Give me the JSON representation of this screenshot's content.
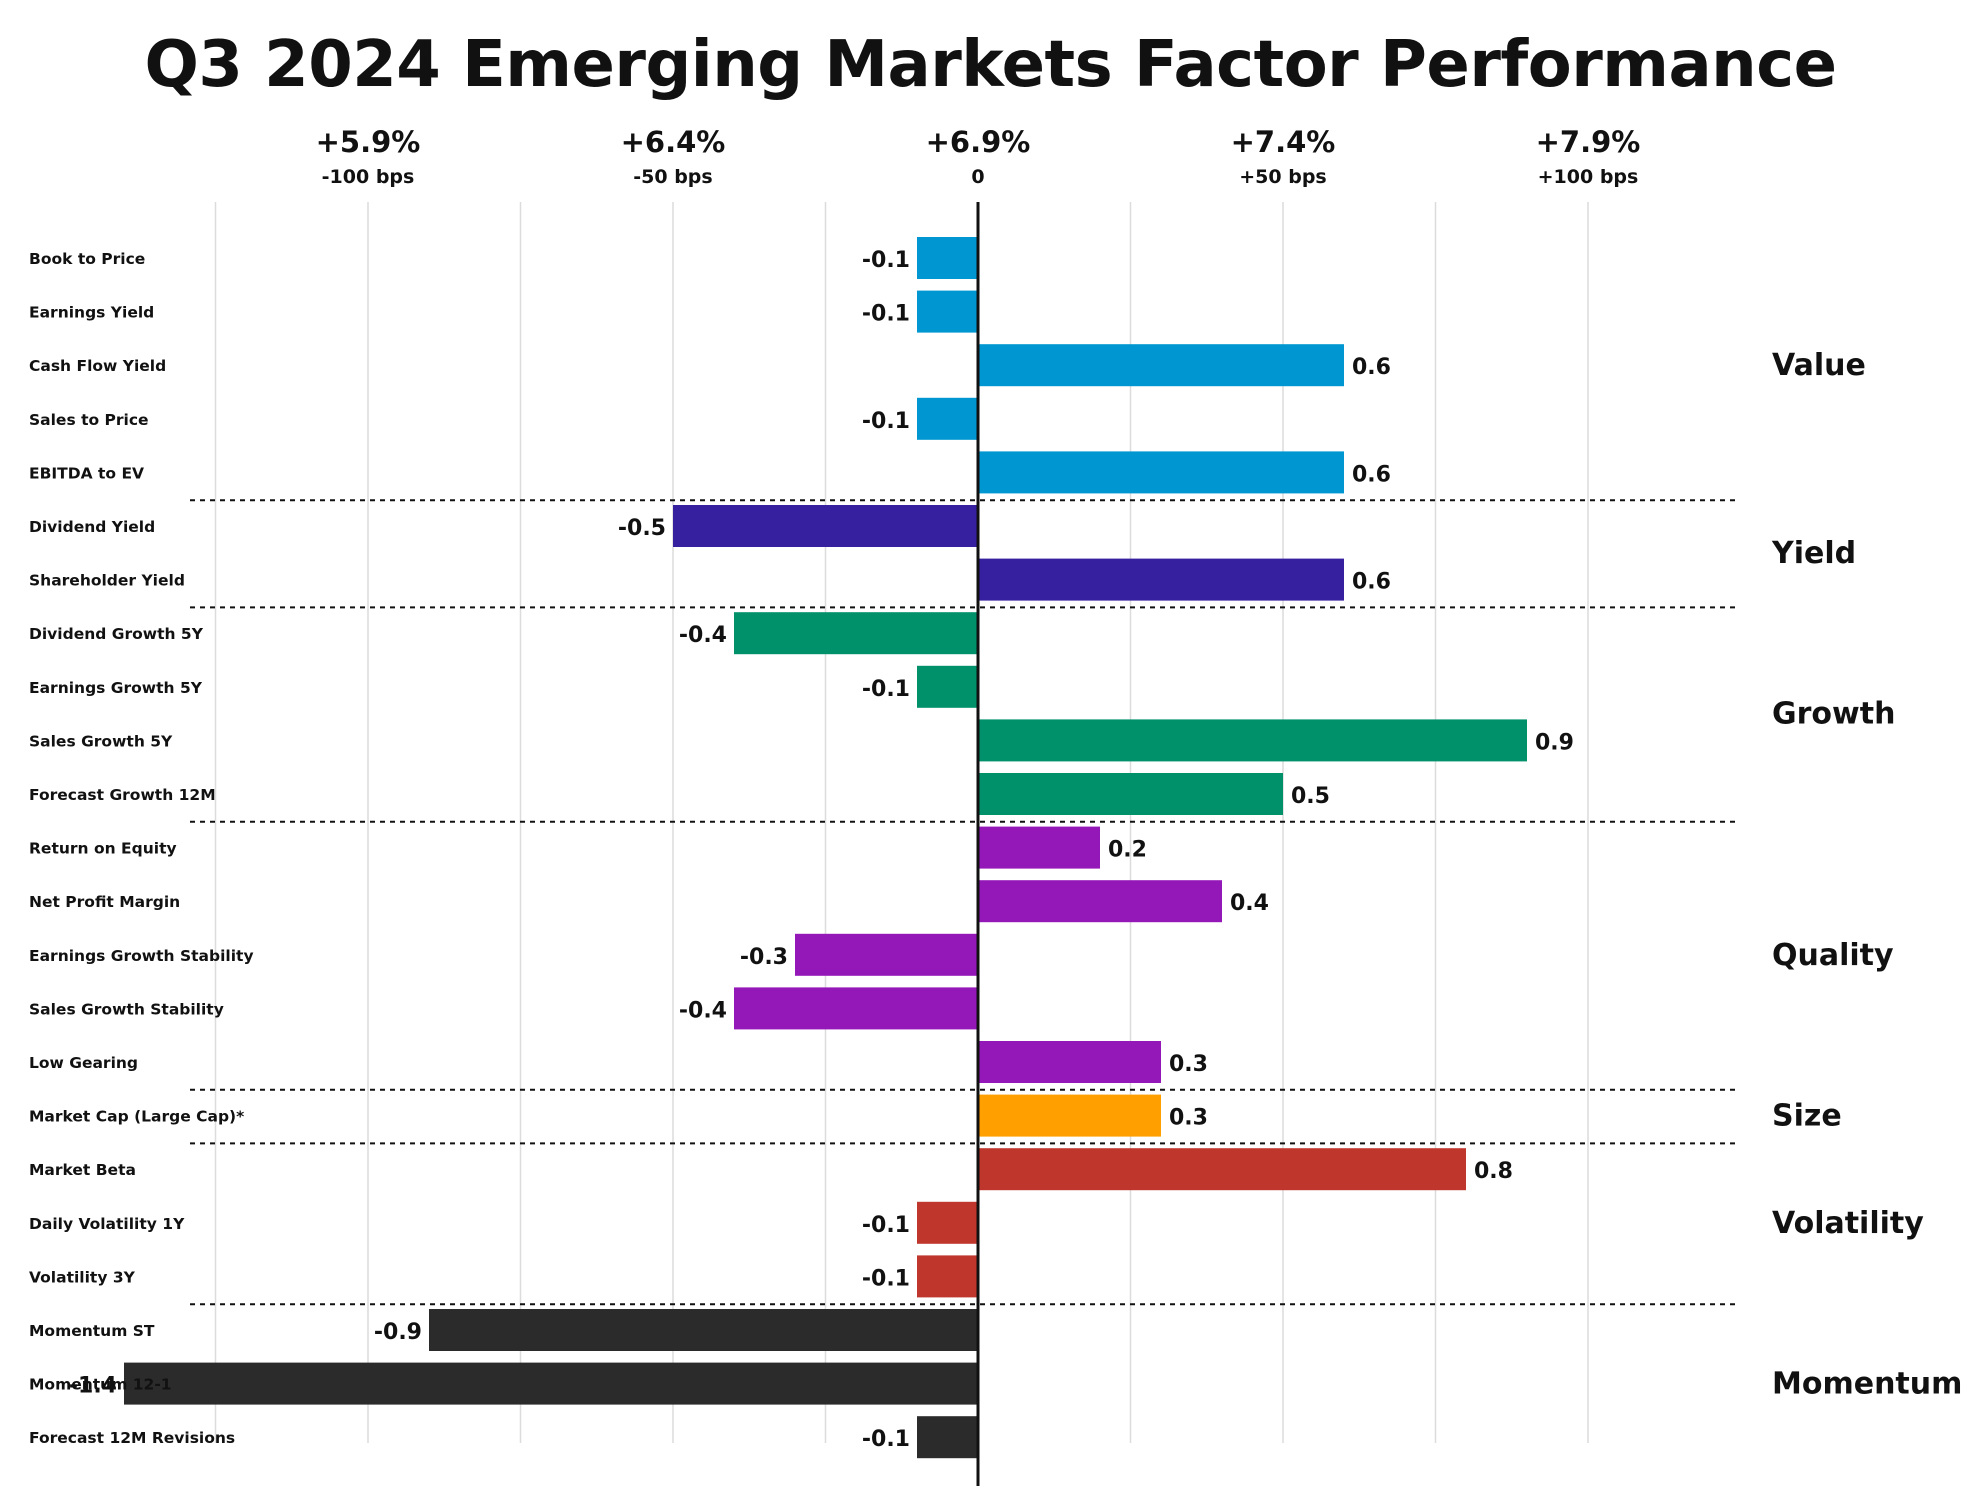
{
  "chart_data": {
    "type": "bar",
    "orientation": "horizontal",
    "title": "Q3 2024 Emerging Markets Factor Performance",
    "x_range_bps": [
      -125,
      100
    ],
    "x_ticks": [
      {
        "value": -100,
        "pct_label": "+5.9%",
        "bps_label": "-100 bps"
      },
      {
        "value": -50,
        "pct_label": "+6.4%",
        "bps_label": "-50 bps"
      },
      {
        "value": 0,
        "pct_label": "+6.9%",
        "bps_label": "0"
      },
      {
        "value": 50,
        "pct_label": "+7.4%",
        "bps_label": "+50 bps"
      },
      {
        "value": 100,
        "pct_label": "+7.9%",
        "bps_label": "+100 bps"
      }
    ],
    "grid": true,
    "groups": [
      {
        "name": "Value",
        "color": "#0096D1",
        "factors": [
          {
            "label": "Book to Price",
            "value": -0.1,
            "display": "-0.1"
          },
          {
            "label": "Earnings Yield",
            "value": -0.1,
            "display": "-0.1"
          },
          {
            "label": "Cash Flow Yield",
            "value": 0.6,
            "display": "0.6"
          },
          {
            "label": "Sales to Price",
            "value": -0.1,
            "display": "-0.1"
          },
          {
            "label": "EBITDA to EV",
            "value": 0.6,
            "display": "0.6"
          }
        ]
      },
      {
        "name": "Yield",
        "color": "#3720A0",
        "factors": [
          {
            "label": "Dividend Yield",
            "value": -0.5,
            "display": "-0.5"
          },
          {
            "label": "Shareholder Yield",
            "value": 0.6,
            "display": "0.6"
          }
        ]
      },
      {
        "name": "Growth",
        "color": "#00916A",
        "factors": [
          {
            "label": "Dividend Growth 5Y",
            "value": -0.4,
            "display": "-0.4"
          },
          {
            "label": "Earnings Growth 5Y",
            "value": -0.1,
            "display": "-0.1"
          },
          {
            "label": "Sales Growth 5Y",
            "value": 0.9,
            "display": "0.9"
          },
          {
            "label": "Forecast Growth 12M",
            "value": 0.5,
            "display": "0.5"
          }
        ]
      },
      {
        "name": "Quality",
        "color": "#9418B8",
        "factors": [
          {
            "label": "Return on Equity",
            "value": 0.2,
            "display": "0.2"
          },
          {
            "label": "Net Profit Margin",
            "value": 0.4,
            "display": "0.4"
          },
          {
            "label": "Earnings Growth Stability",
            "value": -0.3,
            "display": "-0.3"
          },
          {
            "label": "Sales Growth Stability",
            "value": -0.4,
            "display": "-0.4"
          },
          {
            "label": "Low Gearing",
            "value": 0.3,
            "display": "0.3"
          }
        ]
      },
      {
        "name": "Size",
        "color": "#FFA000",
        "factors": [
          {
            "label": "Market Cap (Large Cap)*",
            "value": 0.3,
            "display": "0.3"
          }
        ]
      },
      {
        "name": "Volatility",
        "color": "#BE362C",
        "factors": [
          {
            "label": "Market Beta",
            "value": 0.8,
            "display": "0.8"
          },
          {
            "label": "Daily Volatility 1Y",
            "value": -0.1,
            "display": "-0.1"
          },
          {
            "label": "Volatility 3Y",
            "value": -0.1,
            "display": "-0.1"
          }
        ]
      },
      {
        "name": "Momentum",
        "color": "#2B2B2B",
        "factors": [
          {
            "label": "Momentum ST",
            "value": -0.9,
            "display": "-0.9"
          },
          {
            "label": "Momentum 12-1",
            "value": -1.4,
            "display": "-1.4"
          },
          {
            "label": "Forecast 12M Revisions",
            "value": -0.1,
            "display": "-0.1"
          }
        ]
      }
    ]
  }
}
